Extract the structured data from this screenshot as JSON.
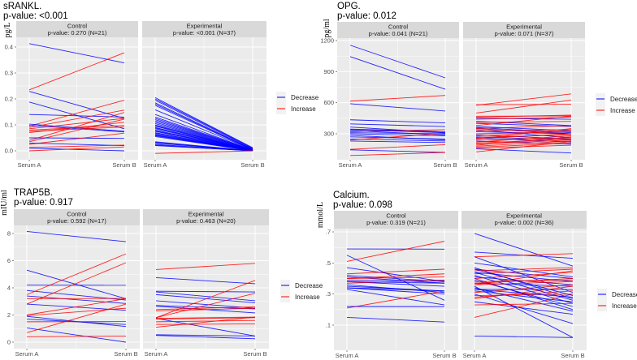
{
  "colors": {
    "decrease": "#0000FF",
    "increase": "#FF0000",
    "panel_bg": "#EBEBEB",
    "strip_bg": "#D9D9D9"
  },
  "legend": {
    "decrease": "Decrease",
    "increase": "Increase"
  },
  "chart_data": [
    {
      "type": "line",
      "title": "sRANKL.",
      "subtitle": "p-value: <0.001",
      "ylabel": "pg/L",
      "x": [
        "Serum A",
        "Serum B"
      ],
      "ylim": [
        -0.03,
        0.43
      ],
      "yticks": [
        0,
        0.1,
        0.2,
        0.3,
        0.4
      ],
      "ytick_labels": [
        "0.0",
        "0.1",
        "0.2",
        "0.3",
        "0.4"
      ],
      "facets": [
        {
          "name": "Control",
          "stat": "p-value: 0.270 (N=21)",
          "pairs": [
            [
              0.413,
              0.339
            ],
            [
              0.235,
              0.378
            ],
            [
              0.229,
              0.125
            ],
            [
              0.188,
              0.085
            ],
            [
              0.14,
              0.13
            ],
            [
              0.095,
              0.195
            ],
            [
              0.103,
              0.075
            ],
            [
              0.09,
              0.157
            ],
            [
              0.085,
              0.125
            ],
            [
              0.08,
              0.098
            ],
            [
              0.07,
              0.11
            ],
            [
              0.098,
              0.073
            ],
            [
              0.04,
              0.148
            ],
            [
              0.035,
              0.122
            ],
            [
              0.05,
              0.048
            ],
            [
              0.025,
              0.068
            ],
            [
              0.03,
              0.02
            ],
            [
              0.013,
              0.022
            ],
            [
              0.01,
              0.0
            ],
            [
              0.0,
              0.015
            ],
            [
              0.075,
              0.092
            ]
          ]
        },
        {
          "name": "Experimental",
          "stat": "p-value: <0.001 (N=37)",
          "pairs": [
            [
              0.205,
              0.012
            ],
            [
              0.2,
              0.01
            ],
            [
              0.195,
              0.008
            ],
            [
              0.185,
              0.006
            ],
            [
              0.18,
              0.005
            ],
            [
              0.175,
              0.004
            ],
            [
              0.158,
              0.004
            ],
            [
              0.14,
              0.003
            ],
            [
              0.13,
              0.003
            ],
            [
              0.125,
              0.002
            ],
            [
              0.12,
              0.002
            ],
            [
              0.115,
              0.002
            ],
            [
              0.11,
              0.001
            ],
            [
              0.105,
              0.001
            ],
            [
              0.1,
              0.001
            ],
            [
              0.097,
              0.0
            ],
            [
              0.095,
              0.0
            ],
            [
              0.09,
              0.0
            ],
            [
              0.088,
              0.0
            ],
            [
              0.085,
              0.0
            ],
            [
              0.08,
              0.0
            ],
            [
              0.077,
              0.0
            ],
            [
              0.075,
              0.0
            ],
            [
              0.07,
              0.0
            ],
            [
              0.068,
              0.0
            ],
            [
              0.065,
              0.0
            ],
            [
              0.062,
              0.0
            ],
            [
              0.06,
              0.0
            ],
            [
              0.058,
              0.0
            ],
            [
              0.055,
              0.0
            ],
            [
              0.035,
              0.0
            ],
            [
              0.032,
              0.0
            ],
            [
              0.03,
              0.0
            ],
            [
              0.025,
              0.0
            ],
            [
              0.022,
              0.0
            ],
            [
              0.02,
              0.0
            ],
            [
              -0.01,
              0.0
            ]
          ]
        }
      ]
    },
    {
      "type": "line",
      "title": "OPG.",
      "subtitle": "p-value: 0.012",
      "ylabel": "pg/ml",
      "x": [
        "Serum A",
        "Serum B"
      ],
      "ylim": [
        60,
        1260
      ],
      "yticks": [
        300,
        600,
        900,
        1200
      ],
      "ytick_labels": [
        "300",
        "600",
        "900",
        "1200"
      ],
      "facets": [
        {
          "name": "Control",
          "stat": "p-value: 0.041 (N=21)",
          "pairs": [
            [
              1155,
              840
            ],
            [
              1045,
              730
            ],
            [
              615,
              670
            ],
            [
              590,
              520
            ],
            [
              435,
              405
            ],
            [
              395,
              370
            ],
            [
              365,
              310
            ],
            [
              345,
              320
            ],
            [
              330,
              290
            ],
            [
              320,
              340
            ],
            [
              310,
              300
            ],
            [
              300,
              280
            ],
            [
              285,
              240
            ],
            [
              270,
              250
            ],
            [
              250,
              230
            ],
            [
              240,
              305
            ],
            [
              230,
              215
            ],
            [
              150,
              195
            ],
            [
              145,
              120
            ],
            [
              90,
              120
            ],
            [
              340,
              310
            ]
          ]
        },
        {
          "name": "Experimental",
          "stat": "p-value: 0.071 (N=37)",
          "pairs": [
            [
              580,
              585
            ],
            [
              575,
              685
            ],
            [
              500,
              625
            ],
            [
              470,
              472
            ],
            [
              460,
              480
            ],
            [
              450,
              440
            ],
            [
              440,
              460
            ],
            [
              420,
              380
            ],
            [
              410,
              420
            ],
            [
              400,
              370
            ],
            [
              380,
              470
            ],
            [
              370,
              330
            ],
            [
              360,
              310
            ],
            [
              350,
              300
            ],
            [
              340,
              260
            ],
            [
              330,
              340
            ],
            [
              320,
              300
            ],
            [
              300,
              320
            ],
            [
              290,
              250
            ],
            [
              280,
              330
            ],
            [
              270,
              240
            ],
            [
              265,
              290
            ],
            [
              260,
              220
            ],
            [
              255,
              300
            ],
            [
              250,
              350
            ],
            [
              240,
              260
            ],
            [
              230,
              200
            ],
            [
              220,
              280
            ],
            [
              210,
              250
            ],
            [
              200,
              240
            ],
            [
              190,
              270
            ],
            [
              180,
              230
            ],
            [
              170,
              210
            ],
            [
              160,
              190
            ],
            [
              155,
              115
            ],
            [
              125,
              225
            ],
            [
              350,
              380
            ]
          ]
        }
      ]
    },
    {
      "type": "line",
      "title": "TRAP5B.",
      "subtitle": "p-value: 0.917",
      "ylabel": "mIU/ml",
      "x": [
        "Serum A",
        "Serum B"
      ],
      "ylim": [
        -0.5,
        8.6
      ],
      "yticks": [
        0,
        2,
        4,
        6,
        8
      ],
      "ytick_labels": [
        "0",
        "2",
        "4",
        "6",
        "8"
      ],
      "facets": [
        {
          "name": "Control",
          "stat": "p-value: 0.592 (N=17)",
          "pairs": [
            [
              8.15,
              7.4
            ],
            [
              5.3,
              3.2
            ],
            [
              4.2,
              4.19
            ],
            [
              3.8,
              3.1
            ],
            [
              3.5,
              6.5
            ],
            [
              3.4,
              2.85
            ],
            [
              3.2,
              3.22
            ],
            [
              2.8,
              5.85
            ],
            [
              2.8,
              2.35
            ],
            [
              2.0,
              3.2
            ],
            [
              1.95,
              2.5
            ],
            [
              1.9,
              1.15
            ],
            [
              1.7,
              1.3
            ],
            [
              1.5,
              1.52
            ],
            [
              1.05,
              0.0
            ],
            [
              0.7,
              2.8
            ],
            [
              0.4,
              0.45
            ]
          ]
        },
        {
          "name": "Experimental",
          "stat": "p-value: 0.463 (N=20)",
          "pairs": [
            [
              5.35,
              5.8
            ],
            [
              4.75,
              4.3
            ],
            [
              3.75,
              3.7
            ],
            [
              3.7,
              3.05
            ],
            [
              3.5,
              2.9
            ],
            [
              3.05,
              2.5
            ],
            [
              2.7,
              2.45
            ],
            [
              2.65,
              2.15
            ],
            [
              2.4,
              2.6
            ],
            [
              2.3,
              2.5
            ],
            [
              1.8,
              4.55
            ],
            [
              1.8,
              3.6
            ],
            [
              1.75,
              0.45
            ],
            [
              1.75,
              1.85
            ],
            [
              1.7,
              1.8
            ],
            [
              1.5,
              1.6
            ],
            [
              1.3,
              1.35
            ],
            [
              1.1,
              1.85
            ],
            [
              0.55,
              0.45
            ],
            [
              0.5,
              0.25
            ]
          ]
        }
      ]
    },
    {
      "type": "line",
      "title": "Calcium.",
      "subtitle": "p-value: 0.098",
      "ylabel": "mmol/L",
      "x": [
        "Serum A",
        "Serum B"
      ],
      "ylim": [
        -0.06,
        0.72
      ],
      "yticks": [
        0.1,
        0.3,
        0.5,
        0.7
      ],
      "ytick_labels": [
        ".1",
        ".3",
        ".5",
        ".7"
      ],
      "facets": [
        {
          "name": "Control",
          "stat": "p-value: 0.319 (N=21)",
          "pairs": [
            [
              0.59,
              0.589
            ],
            [
              0.51,
              0.64
            ],
            [
              0.55,
              0.26
            ],
            [
              0.47,
              0.38
            ],
            [
              0.43,
              0.46
            ],
            [
              0.42,
              0.38
            ],
            [
              0.41,
              0.37
            ],
            [
              0.4,
              0.43
            ],
            [
              0.4,
              0.41
            ],
            [
              0.39,
              0.385
            ],
            [
              0.38,
              0.35
            ],
            [
              0.37,
              0.39
            ],
            [
              0.35,
              0.32
            ],
            [
              0.34,
              0.3
            ],
            [
              0.33,
              0.23
            ],
            [
              0.36,
              0.31
            ],
            [
              0.21,
              0.32
            ],
            [
              0.22,
              0.219
            ],
            [
              0.15,
              0.12
            ],
            [
              0.38,
              0.37
            ],
            [
              0.34,
              0.32
            ]
          ]
        },
        {
          "name": "Experimental",
          "stat": "p-value: 0.002 (N=36)",
          "pairs": [
            [
              0.69,
              0.48
            ],
            [
              0.57,
              0.53
            ],
            [
              0.54,
              0.56
            ],
            [
              0.54,
              0.31
            ],
            [
              0.5,
              0.41
            ],
            [
              0.47,
              0.27
            ],
            [
              0.46,
              0.4
            ],
            [
              0.45,
              0.47
            ],
            [
              0.44,
              0.38
            ],
            [
              0.43,
              0.46
            ],
            [
              0.42,
              0.24
            ],
            [
              0.41,
              0.36
            ],
            [
              0.4,
              0.44
            ],
            [
              0.39,
              0.22
            ],
            [
              0.38,
              0.39
            ],
            [
              0.37,
              0.35
            ],
            [
              0.36,
              0.45
            ],
            [
              0.35,
              0.02
            ],
            [
              0.34,
              0.19
            ],
            [
              0.33,
              0.329
            ],
            [
              0.32,
              0.25
            ],
            [
              0.31,
              0.36
            ],
            [
              0.3,
              0.11
            ],
            [
              0.29,
              0.3
            ],
            [
              0.28,
              0.32
            ],
            [
              0.27,
              0.35
            ],
            [
              0.25,
              0.17
            ],
            [
              0.23,
              0.24
            ],
            [
              0.15,
              0.3
            ],
            [
              0.03,
              0.02
            ],
            [
              0.46,
              0.29
            ],
            [
              0.4,
              0.2
            ],
            [
              0.36,
              0.38
            ],
            [
              0.33,
              0.28
            ],
            [
              0.44,
              0.26
            ],
            [
              0.37,
              0.4
            ]
          ]
        }
      ]
    }
  ]
}
